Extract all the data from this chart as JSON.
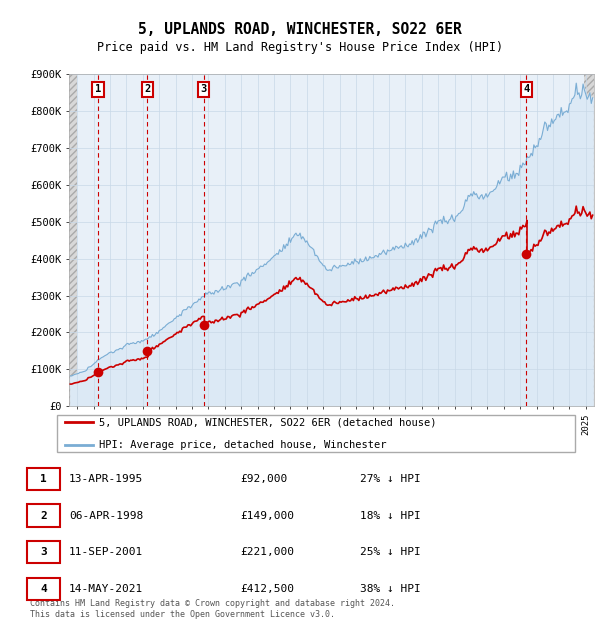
{
  "title": "5, UPLANDS ROAD, WINCHESTER, SO22 6ER",
  "subtitle": "Price paid vs. HM Land Registry's House Price Index (HPI)",
  "ylim": [
    0,
    900000
  ],
  "yticks": [
    0,
    100000,
    200000,
    300000,
    400000,
    500000,
    600000,
    700000,
    800000,
    900000
  ],
  "ytick_labels": [
    "£0",
    "£100K",
    "£200K",
    "£300K",
    "£400K",
    "£500K",
    "£600K",
    "£700K",
    "£800K",
    "£900K"
  ],
  "xlim_start": 1993.5,
  "xlim_end": 2025.5,
  "sales": [
    {
      "year": 1995.27,
      "price": 92000,
      "label": "1"
    },
    {
      "year": 1998.27,
      "price": 149000,
      "label": "2"
    },
    {
      "year": 2001.7,
      "price": 221000,
      "label": "3"
    },
    {
      "year": 2021.37,
      "price": 412500,
      "label": "4"
    }
  ],
  "sale_color": "#cc0000",
  "hpi_color": "#7aadd4",
  "hpi_fill_color": "#dce9f5",
  "legend_entries": [
    "5, UPLANDS ROAD, WINCHESTER, SO22 6ER (detached house)",
    "HPI: Average price, detached house, Winchester"
  ],
  "table_data": [
    [
      "1",
      "13-APR-1995",
      "£92,000",
      "27% ↓ HPI"
    ],
    [
      "2",
      "06-APR-1998",
      "£149,000",
      "18% ↓ HPI"
    ],
    [
      "3",
      "11-SEP-2001",
      "£221,000",
      "25% ↓ HPI"
    ],
    [
      "4",
      "14-MAY-2021",
      "£412,500",
      "38% ↓ HPI"
    ]
  ],
  "footnote": "Contains HM Land Registry data © Crown copyright and database right 2024.\nThis data is licensed under the Open Government Licence v3.0.",
  "grid_color": "#c8d8e8",
  "bg_color": "#e8f0f8",
  "hatch_bg": "#e0e0e0"
}
